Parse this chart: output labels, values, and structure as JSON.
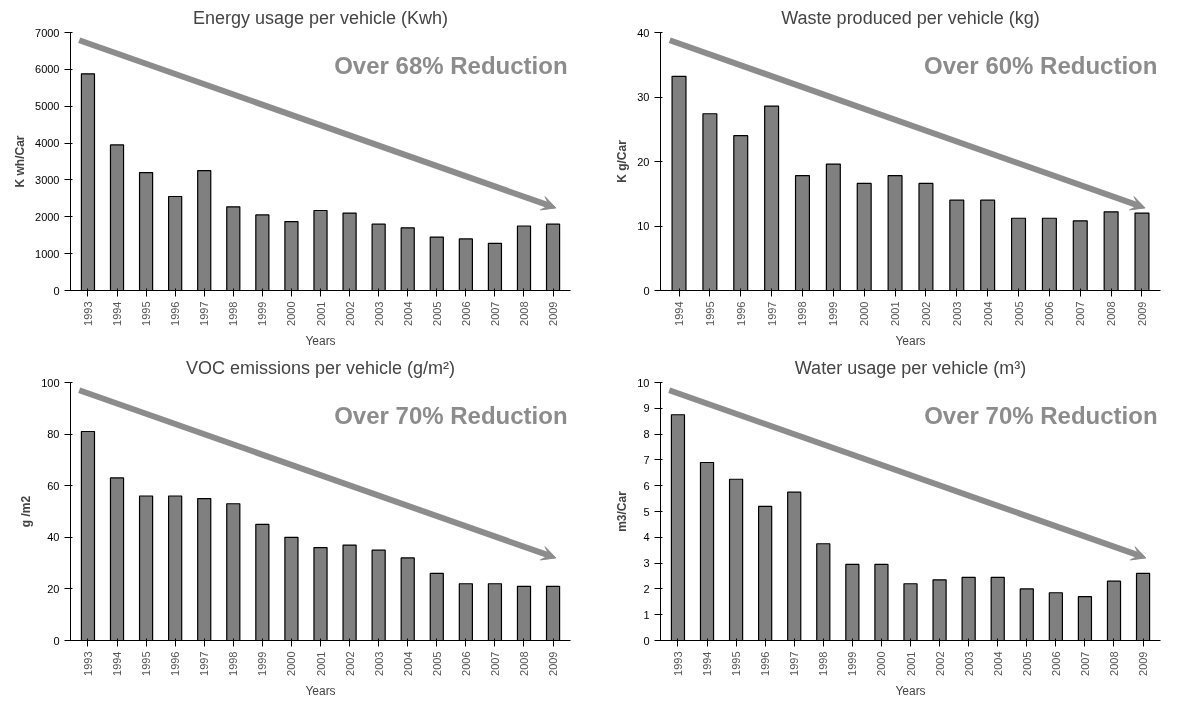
{
  "chart_data": [
    {
      "type": "bar",
      "title": "Energy usage per vehicle (Kwh)",
      "xlabel": "Years",
      "ylabel": "K wh/Car",
      "categories": [
        "1993",
        "1994",
        "1995",
        "1996",
        "1997",
        "1998",
        "1999",
        "2000",
        "2001",
        "2002",
        "2003",
        "2004",
        "2005",
        "2006",
        "2007",
        "2008",
        "2009"
      ],
      "values": [
        5880,
        3950,
        3200,
        2550,
        3250,
        2270,
        2050,
        1870,
        2170,
        2100,
        1800,
        1700,
        1450,
        1400,
        1280,
        1750,
        1800
      ],
      "color": "#808080",
      "ylim": [
        0,
        7000
      ],
      "yticks": [
        0,
        1000,
        2000,
        3000,
        4000,
        5000,
        6000,
        7000
      ],
      "grid": false,
      "annotations": [
        "Over 68% Reduction"
      ]
    },
    {
      "type": "bar",
      "title": "Waste produced per vehicle (kg)",
      "xlabel": "Years",
      "ylabel": "K g/Car",
      "categories": [
        "1994",
        "1995",
        "1996",
        "1997",
        "1998",
        "1999",
        "2000",
        "2001",
        "2002",
        "2003",
        "2004",
        "2005",
        "2006",
        "2007",
        "2008",
        "2009"
      ],
      "values": [
        33.2,
        27.4,
        24,
        28.6,
        17.8,
        19.6,
        16.6,
        17.8,
        16.6,
        14,
        14,
        11.2,
        11.2,
        10.8,
        12.2,
        12
      ],
      "color": "#808080",
      "ylim": [
        0,
        40
      ],
      "yticks": [
        0,
        10,
        20,
        30,
        40
      ],
      "grid": false,
      "annotations": [
        "Over 60% Reduction"
      ]
    },
    {
      "type": "bar",
      "title": "VOC emissions per vehicle (g/m²)",
      "xlabel": "Years",
      "ylabel": "g /m2",
      "categories": [
        "1993",
        "1994",
        "1995",
        "1996",
        "1997",
        "1998",
        "1999",
        "2000",
        "2001",
        "2002",
        "2003",
        "2004",
        "2005",
        "2006",
        "2007",
        "2008",
        "2009"
      ],
      "values": [
        81,
        63,
        56,
        56,
        55,
        53,
        45,
        40,
        36,
        37,
        35,
        32,
        26,
        22,
        22,
        21,
        21
      ],
      "color": "#808080",
      "ylim": [
        0,
        100
      ],
      "yticks": [
        0,
        20,
        40,
        60,
        80,
        100
      ],
      "grid": false,
      "annotations": [
        "Over 70% Reduction"
      ]
    },
    {
      "type": "bar",
      "title": "Water usage per vehicle (m³)",
      "xlabel": "Years",
      "ylabel": "m3/Car",
      "categories": [
        "1993",
        "1994",
        "1995",
        "1996",
        "1997",
        "1998",
        "1999",
        "2000",
        "2001",
        "2002",
        "2003",
        "2004",
        "2005",
        "2006",
        "2007",
        "2008",
        "2009"
      ],
      "values": [
        8.75,
        6.9,
        6.25,
        5.2,
        5.75,
        3.75,
        2.95,
        2.95,
        2.2,
        2.35,
        2.45,
        2.45,
        2.0,
        1.85,
        1.7,
        2.3,
        2.6
      ],
      "color": "#808080",
      "ylim": [
        0,
        10
      ],
      "yticks": [
        0,
        1,
        2,
        3,
        4,
        5,
        6,
        7,
        8,
        9,
        10
      ],
      "grid": false,
      "annotations": [
        "Over 70% Reduction"
      ]
    }
  ]
}
